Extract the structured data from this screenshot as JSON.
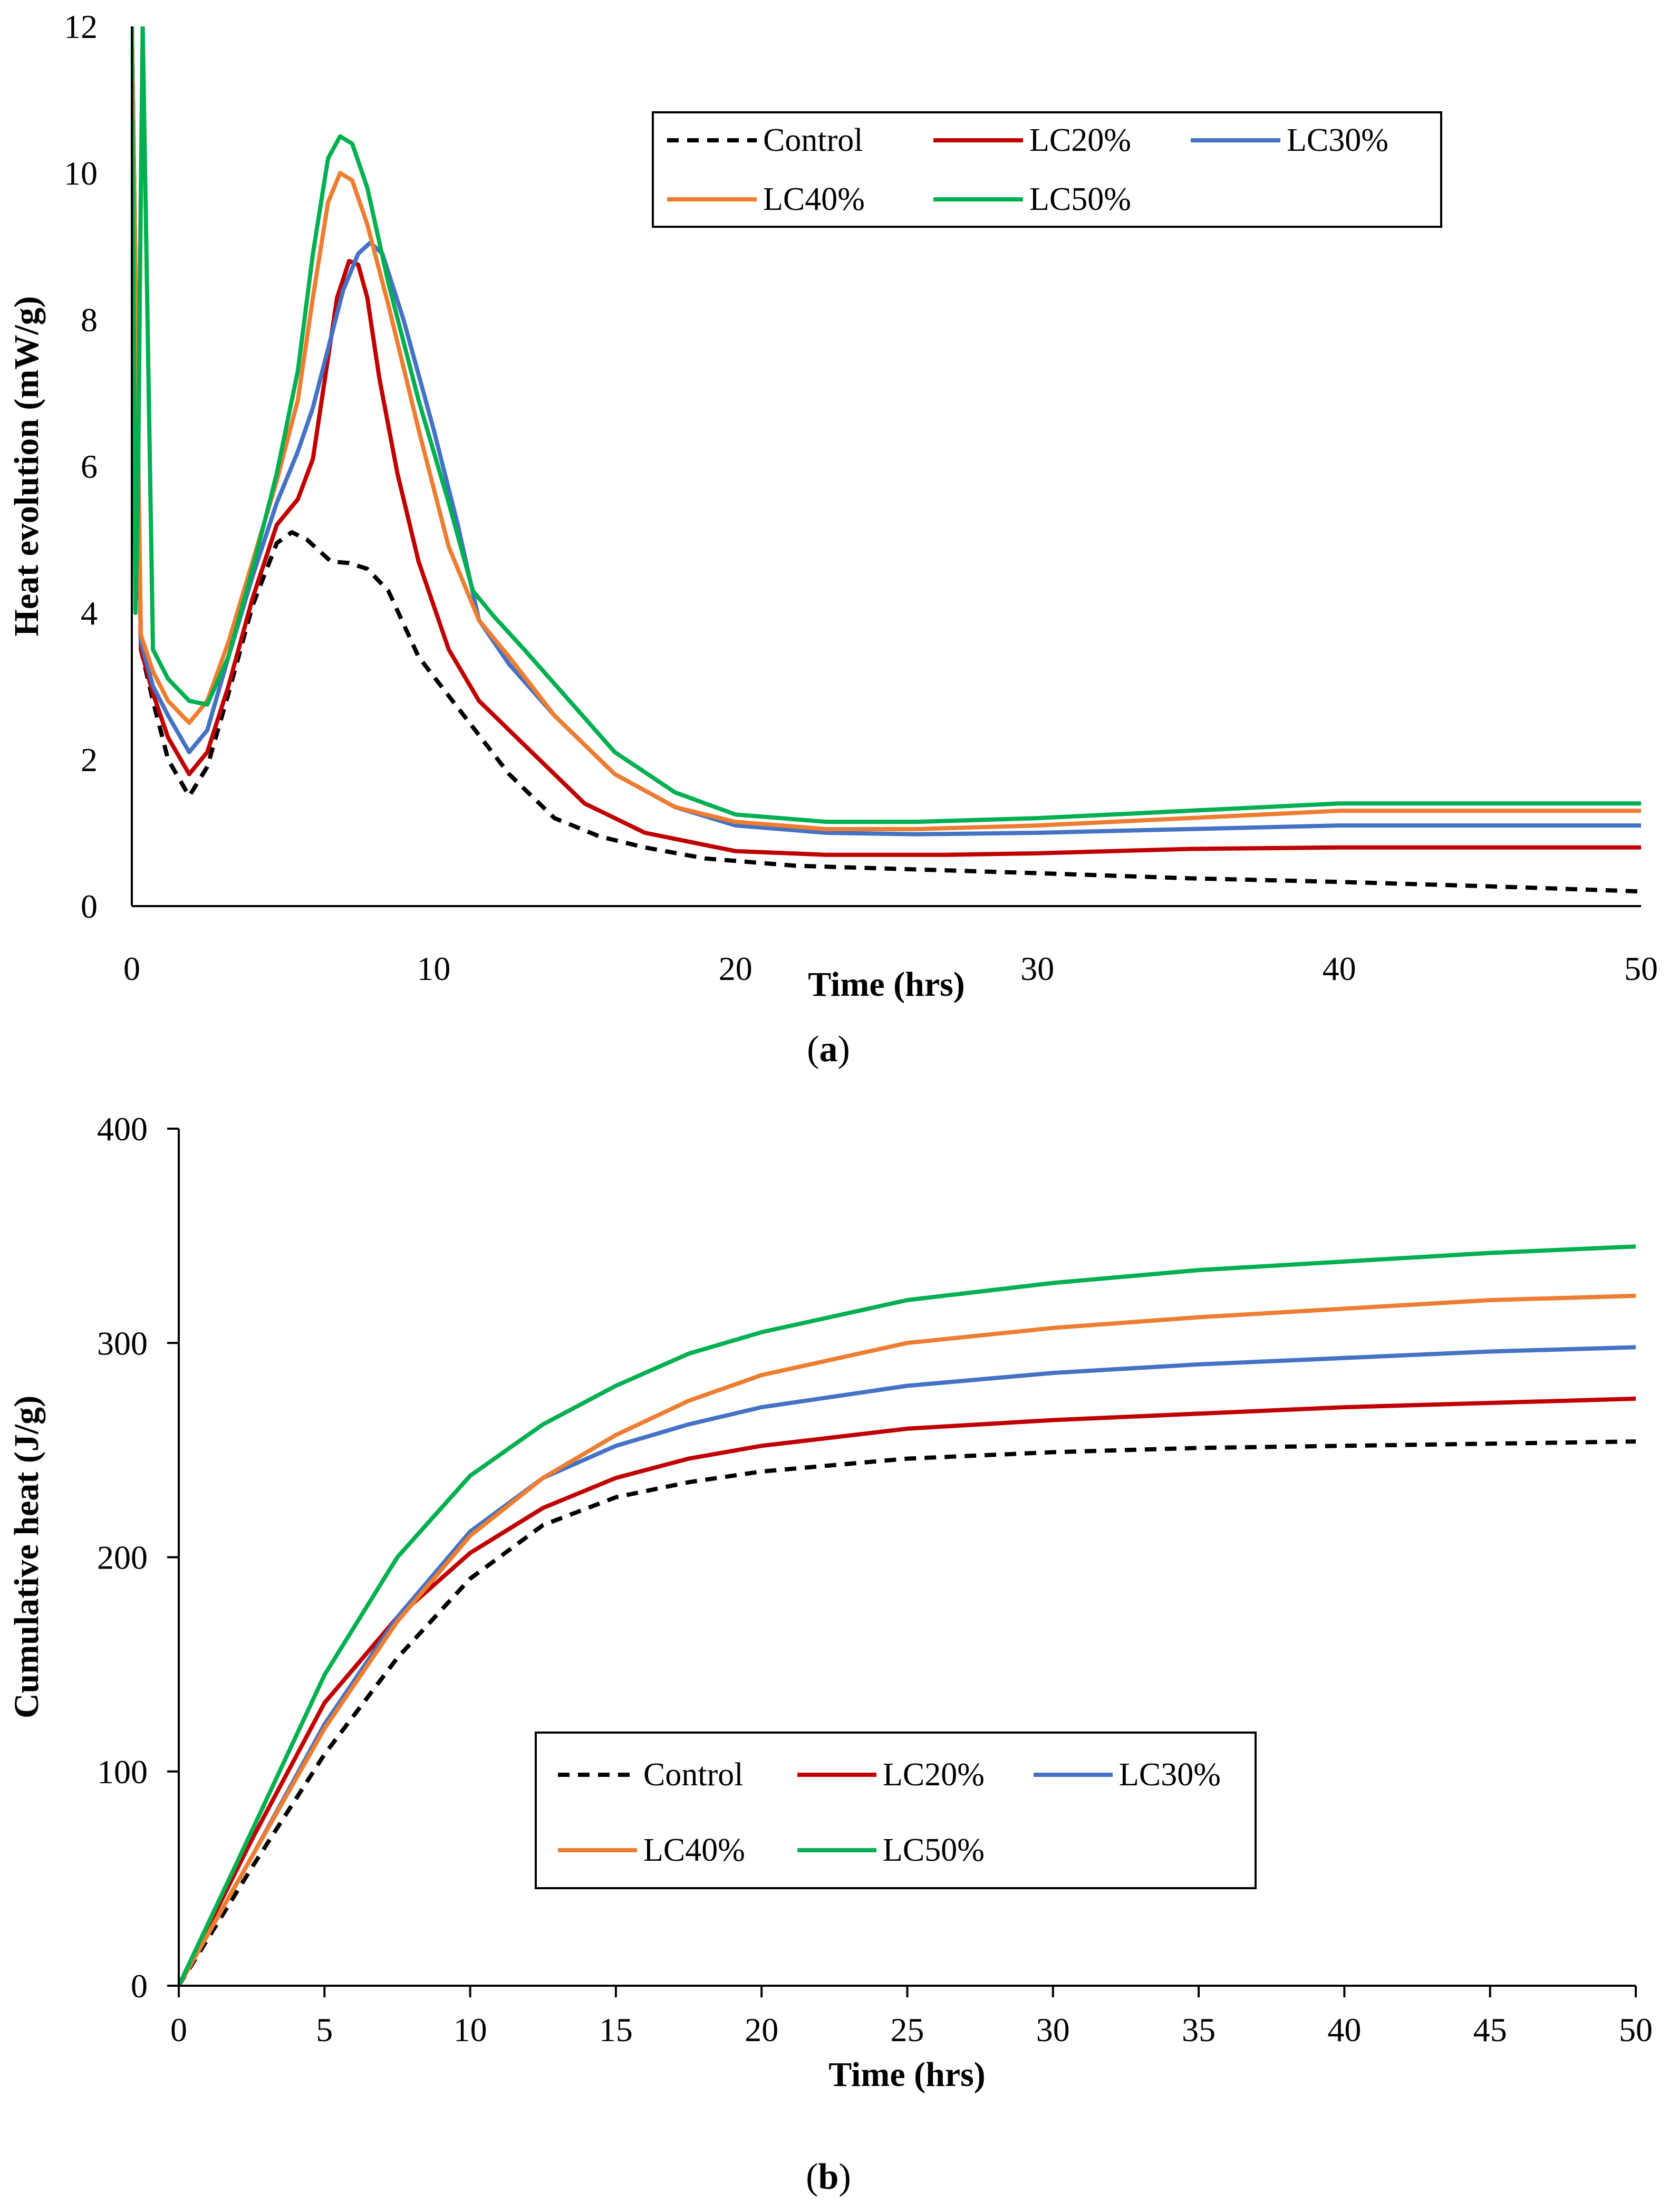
{
  "chart_data": [
    {
      "type": "line",
      "caption": "a",
      "xlabel": "Time (hrs)",
      "ylabel": "Heat evolution (mW/g)",
      "xlim": [
        0,
        50
      ],
      "ylim": [
        0,
        12
      ],
      "xticks": [
        0,
        10,
        20,
        30,
        40,
        50
      ],
      "yticks": [
        0,
        2,
        4,
        6,
        8,
        10,
        12
      ],
      "grid": false,
      "legend_position": "top-right",
      "series": [
        {
          "name": "Control",
          "color": "#000000",
          "dash": true,
          "x": [
            0,
            0.3,
            0.7,
            1.2,
            1.9,
            2.5,
            3.2,
            4.0,
            4.8,
            5.3,
            5.8,
            6.2,
            6.6,
            7.2,
            7.8,
            8.5,
            9.5,
            11,
            12.5,
            14,
            15.5,
            17,
            19,
            22,
            26,
            30,
            35,
            40,
            45,
            50
          ],
          "y": [
            12,
            3.5,
            2.8,
            2.0,
            1.5,
            1.9,
            2.9,
            4.1,
            4.95,
            5.1,
            5.0,
            4.85,
            4.7,
            4.68,
            4.6,
            4.3,
            3.4,
            2.6,
            1.8,
            1.2,
            0.95,
            0.8,
            0.65,
            0.55,
            0.5,
            0.45,
            0.38,
            0.33,
            0.27,
            0.2
          ]
        },
        {
          "name": "LC20%",
          "color": "#c00000",
          "dash": false,
          "x": [
            0,
            0.3,
            0.7,
            1.2,
            1.9,
            2.5,
            3.2,
            4.0,
            4.8,
            5.5,
            6.0,
            6.4,
            6.8,
            7.2,
            7.5,
            7.8,
            8.2,
            8.8,
            9.5,
            10.5,
            11.5,
            13,
            15,
            17,
            20,
            23,
            27,
            30,
            35,
            40,
            45,
            50
          ],
          "y": [
            12,
            3.5,
            2.9,
            2.3,
            1.8,
            2.1,
            3.0,
            4.2,
            5.2,
            5.55,
            6.1,
            7.2,
            8.3,
            8.8,
            8.75,
            8.3,
            7.2,
            5.9,
            4.7,
            3.5,
            2.8,
            2.2,
            1.4,
            1.0,
            0.75,
            0.7,
            0.7,
            0.72,
            0.78,
            0.8,
            0.8,
            0.8
          ]
        },
        {
          "name": "LC30%",
          "color": "#4472c4",
          "dash": false,
          "x": [
            0,
            0.3,
            0.7,
            1.2,
            1.9,
            2.5,
            3.2,
            4.0,
            4.8,
            5.5,
            6.0,
            6.5,
            7.0,
            7.5,
            7.9,
            8.3,
            9.0,
            10.0,
            10.8,
            11.5,
            12.5,
            14,
            16,
            18,
            20,
            23,
            26,
            30,
            35,
            40,
            45,
            50
          ],
          "y": [
            12,
            3.6,
            3.0,
            2.6,
            2.1,
            2.4,
            3.4,
            4.5,
            5.5,
            6.2,
            6.8,
            7.6,
            8.4,
            8.9,
            9.05,
            8.9,
            8.0,
            6.5,
            5.2,
            3.9,
            3.3,
            2.6,
            1.8,
            1.35,
            1.1,
            1.0,
            0.98,
            1.0,
            1.05,
            1.1,
            1.1,
            1.1
          ]
        },
        {
          "name": "LC40%",
          "color": "#ed7d31",
          "dash": false,
          "x": [
            0,
            0.3,
            0.7,
            1.2,
            1.9,
            2.5,
            3.2,
            4.0,
            4.8,
            5.5,
            6.0,
            6.5,
            6.9,
            7.3,
            7.8,
            8.5,
            9.5,
            10.5,
            11.5,
            12.5,
            14,
            16,
            18,
            20,
            23,
            26,
            30,
            35,
            40,
            45,
            50
          ],
          "y": [
            12,
            3.7,
            3.2,
            2.8,
            2.5,
            2.8,
            3.6,
            4.7,
            5.8,
            6.9,
            8.3,
            9.6,
            10.0,
            9.9,
            9.3,
            8.2,
            6.5,
            4.9,
            3.9,
            3.4,
            2.6,
            1.8,
            1.35,
            1.15,
            1.05,
            1.05,
            1.1,
            1.2,
            1.3,
            1.3,
            1.3
          ]
        },
        {
          "name": "LC50%",
          "color": "#00b050",
          "dash": false,
          "x": [
            0,
            0.12,
            0.2,
            0.28,
            0.36,
            0.7,
            1.2,
            1.9,
            2.5,
            3.2,
            4.0,
            4.8,
            5.5,
            6.0,
            6.5,
            6.9,
            7.3,
            7.8,
            8.5,
            9.5,
            10.5,
            11.3,
            12,
            13,
            14.5,
            16,
            18,
            20,
            23,
            26,
            30,
            35,
            40,
            45,
            50
          ],
          "y": [
            12,
            4.0,
            5.5,
            9.0,
            12,
            3.5,
            3.1,
            2.8,
            2.75,
            3.4,
            4.6,
            5.9,
            7.3,
            8.9,
            10.2,
            10.5,
            10.4,
            9.8,
            8.5,
            6.9,
            5.5,
            4.3,
            3.95,
            3.5,
            2.8,
            2.1,
            1.55,
            1.25,
            1.15,
            1.15,
            1.2,
            1.3,
            1.4,
            1.4,
            1.4
          ]
        }
      ]
    },
    {
      "type": "line",
      "caption": "b",
      "xlabel": "Time (hrs)",
      "ylabel": "Cumulative heat (J/g)",
      "xlim": [
        0,
        50
      ],
      "ylim": [
        0,
        400
      ],
      "xticks": [
        0,
        5,
        10,
        15,
        20,
        25,
        30,
        35,
        40,
        45,
        50
      ],
      "yticks": [
        0,
        100,
        200,
        300,
        400
      ],
      "grid": false,
      "legend_position": "bottom-center",
      "series": [
        {
          "name": "Control",
          "color": "#000000",
          "dash": true,
          "x": [
            0,
            2.5,
            5,
            7.5,
            10,
            12.5,
            15,
            17.5,
            20,
            25,
            30,
            35,
            40,
            45,
            50
          ],
          "y": [
            0,
            55,
            108,
            153,
            190,
            215,
            228,
            235,
            240,
            246,
            249,
            251,
            252,
            253,
            254
          ]
        },
        {
          "name": "LC20%",
          "color": "#c00000",
          "dash": false,
          "x": [
            0,
            2.5,
            5,
            7.5,
            10,
            12.5,
            15,
            17.5,
            20,
            25,
            30,
            35,
            40,
            45,
            50
          ],
          "y": [
            0,
            68,
            132,
            172,
            202,
            223,
            237,
            246,
            252,
            260,
            264,
            267,
            270,
            272,
            274
          ]
        },
        {
          "name": "LC30%",
          "color": "#4472c4",
          "dash": false,
          "x": [
            0,
            2.5,
            5,
            7.5,
            10,
            12.5,
            15,
            17.5,
            20,
            25,
            30,
            35,
            40,
            45,
            50
          ],
          "y": [
            0,
            60,
            122,
            172,
            212,
            237,
            252,
            262,
            270,
            280,
            286,
            290,
            293,
            296,
            298
          ]
        },
        {
          "name": "LC40%",
          "color": "#ed7d31",
          "dash": false,
          "x": [
            0,
            2.5,
            5,
            7.5,
            10,
            12.5,
            15,
            17.5,
            20,
            25,
            30,
            35,
            40,
            45,
            50
          ],
          "y": [
            0,
            60,
            120,
            170,
            210,
            237,
            257,
            273,
            285,
            300,
            307,
            312,
            316,
            320,
            322
          ]
        },
        {
          "name": "LC50%",
          "color": "#00b050",
          "dash": false,
          "x": [
            0,
            2.5,
            5,
            7.5,
            10,
            12.5,
            15,
            17.5,
            20,
            25,
            30,
            35,
            40,
            45,
            50
          ],
          "y": [
            0,
            72,
            145,
            200,
            238,
            262,
            280,
            295,
            305,
            320,
            328,
            334,
            338,
            342,
            345
          ]
        }
      ]
    }
  ]
}
